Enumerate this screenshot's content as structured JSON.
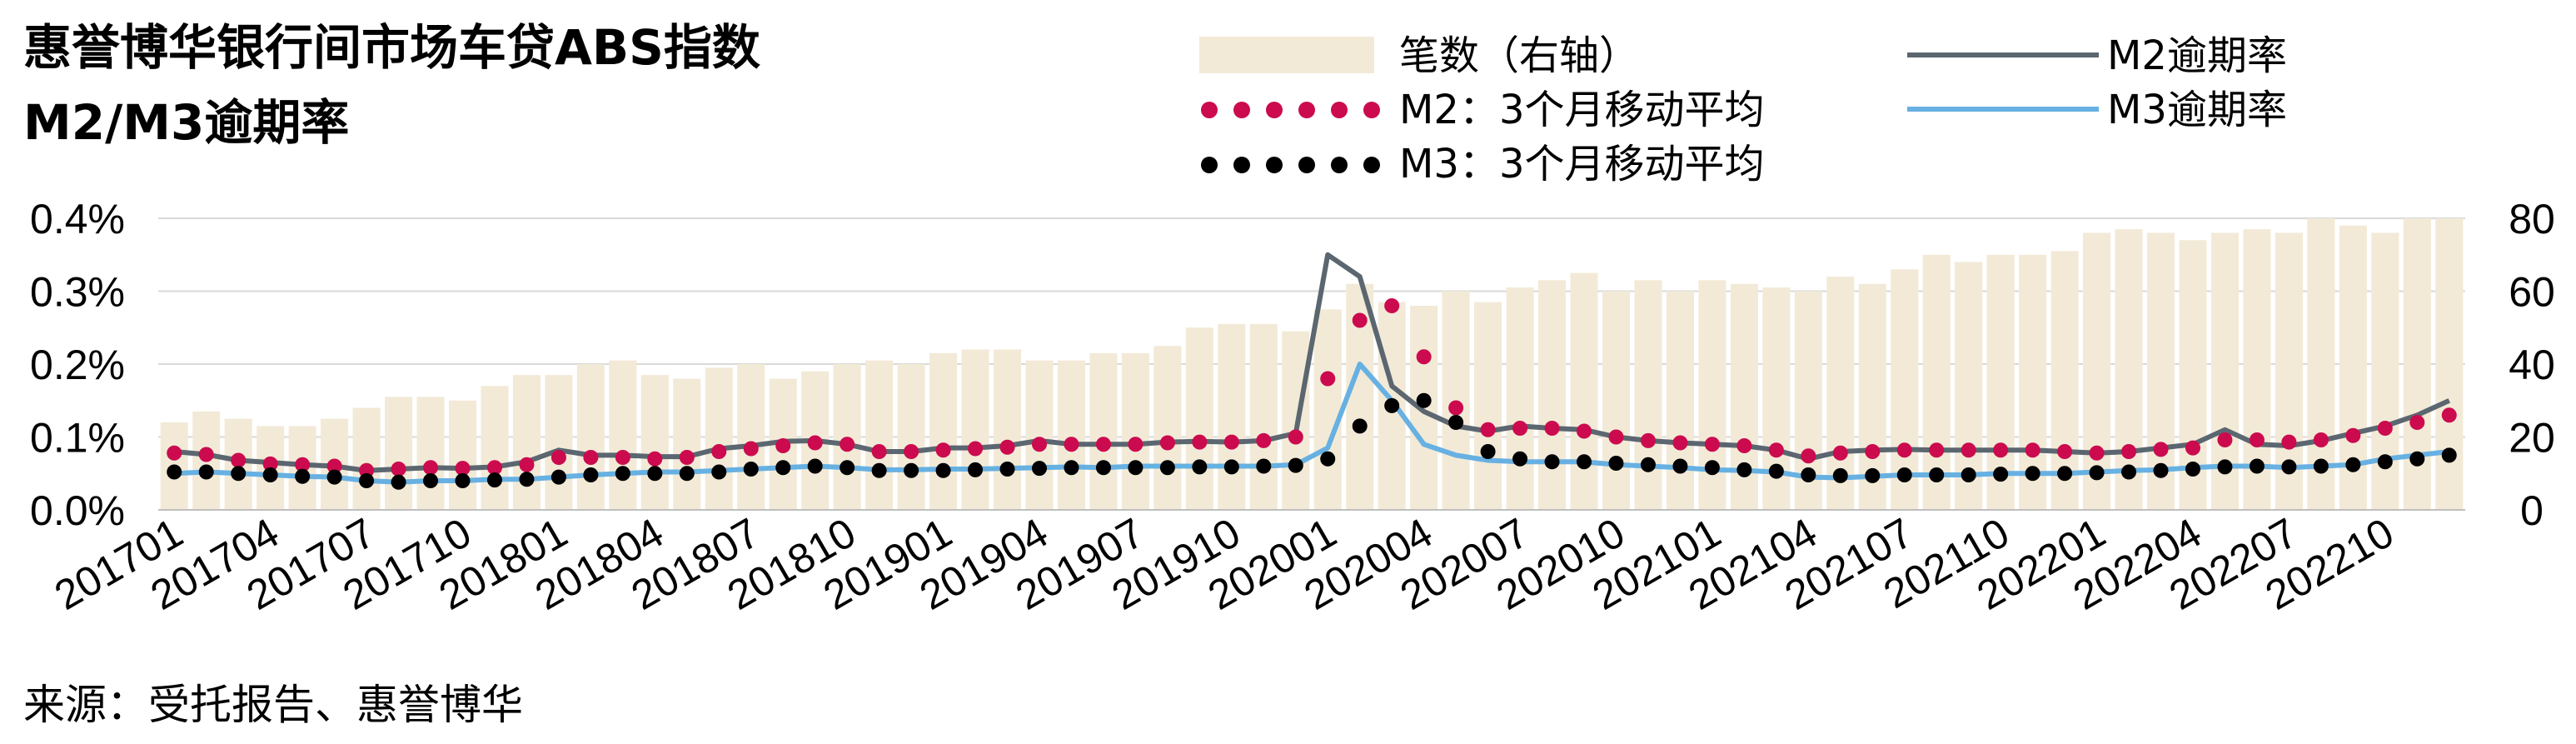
{
  "title": {
    "line1": "惠誉博华银行间市场车贷ABS指数",
    "line2": "M2/M3逾期率"
  },
  "source": "来源：受托报告、惠誉博华",
  "colors": {
    "bars": "#f2ead7",
    "m2_line": "#5b6670",
    "m3_line": "#67b0e2",
    "m2_avg_dots": "#cc0a4e",
    "m3_avg_dots": "#000000",
    "grid": "#d9d9d9"
  },
  "chart_data": {
    "type": "bar+line",
    "months": [
      "201701",
      "201702",
      "201703",
      "201704",
      "201705",
      "201706",
      "201707",
      "201708",
      "201709",
      "201710",
      "201711",
      "201712",
      "201801",
      "201802",
      "201803",
      "201804",
      "201805",
      "201806",
      "201807",
      "201808",
      "201809",
      "201810",
      "201811",
      "201812",
      "201901",
      "201902",
      "201903",
      "201904",
      "201905",
      "201906",
      "201907",
      "201908",
      "201909",
      "201910",
      "201911",
      "201912",
      "202001",
      "202002",
      "202003",
      "202004",
      "202005",
      "202006",
      "202007",
      "202008",
      "202009",
      "202010",
      "202011",
      "202012",
      "202101",
      "202102",
      "202103",
      "202104",
      "202105",
      "202106",
      "202107",
      "202108",
      "202109",
      "202110",
      "202111",
      "202112",
      "202201",
      "202202",
      "202203",
      "202204",
      "202205",
      "202206",
      "202207",
      "202208",
      "202209",
      "202210",
      "202211",
      "202212"
    ],
    "x_tick_labels": [
      "201701",
      "201704",
      "201707",
      "201710",
      "201801",
      "201804",
      "201807",
      "201810",
      "201901",
      "201904",
      "201907",
      "201910",
      "202001",
      "202004",
      "202007",
      "202010",
      "202101",
      "202104",
      "202107",
      "202110",
      "202201",
      "202204",
      "202207",
      "202210"
    ],
    "left_axis": {
      "ticks": [
        "0.0%",
        "0.1%",
        "0.2%",
        "0.3%",
        "0.4%"
      ],
      "range": [
        0,
        0.4
      ],
      "unit": "%"
    },
    "right_axis": {
      "ticks": [
        "0",
        "20",
        "40",
        "60",
        "80"
      ],
      "range": [
        0,
        80
      ]
    },
    "grid": true,
    "legend_position": "top",
    "series": [
      {
        "name": "笔数（右轴）",
        "kind": "bar",
        "axis": "right",
        "values": [
          24,
          27,
          25,
          23,
          23,
          25,
          28,
          31,
          31,
          30,
          34,
          37,
          37,
          40,
          41,
          37,
          36,
          39,
          40,
          36,
          38,
          40,
          41,
          40,
          43,
          44,
          44,
          41,
          41,
          43,
          43,
          45,
          50,
          51,
          51,
          49,
          55,
          62,
          57,
          56,
          60,
          57,
          61,
          63,
          65,
          60,
          63,
          60,
          63,
          62,
          61,
          60,
          64,
          62,
          66,
          70,
          68,
          70,
          70,
          71,
          76,
          77,
          76,
          74,
          76,
          77,
          76,
          80,
          78,
          76,
          80,
          80
        ]
      },
      {
        "name": "M2逾期率",
        "kind": "line",
        "axis": "left",
        "values": [
          0.08,
          0.076,
          0.068,
          0.065,
          0.062,
          0.06,
          0.054,
          0.056,
          0.058,
          0.057,
          0.059,
          0.066,
          0.082,
          0.075,
          0.075,
          0.073,
          0.073,
          0.084,
          0.088,
          0.094,
          0.095,
          0.09,
          0.08,
          0.08,
          0.085,
          0.085,
          0.088,
          0.095,
          0.09,
          0.09,
          0.09,
          0.093,
          0.094,
          0.093,
          0.095,
          0.105,
          0.35,
          0.32,
          0.17,
          0.135,
          0.115,
          0.108,
          0.115,
          0.112,
          0.11,
          0.1,
          0.095,
          0.092,
          0.09,
          0.088,
          0.082,
          0.07,
          0.08,
          0.082,
          0.083,
          0.082,
          0.082,
          0.082,
          0.082,
          0.08,
          0.078,
          0.08,
          0.085,
          0.09,
          0.11,
          0.09,
          0.088,
          0.095,
          0.105,
          0.115,
          0.13,
          0.15
        ]
      },
      {
        "name": "M3逾期率",
        "kind": "line",
        "axis": "left",
        "values": [
          0.05,
          0.052,
          0.05,
          0.048,
          0.046,
          0.045,
          0.04,
          0.038,
          0.04,
          0.04,
          0.042,
          0.042,
          0.045,
          0.048,
          0.05,
          0.052,
          0.052,
          0.054,
          0.056,
          0.058,
          0.06,
          0.058,
          0.055,
          0.055,
          0.056,
          0.056,
          0.057,
          0.058,
          0.059,
          0.058,
          0.06,
          0.06,
          0.06,
          0.06,
          0.06,
          0.062,
          0.085,
          0.2,
          0.15,
          0.09,
          0.075,
          0.068,
          0.066,
          0.066,
          0.066,
          0.062,
          0.06,
          0.058,
          0.055,
          0.054,
          0.052,
          0.045,
          0.044,
          0.046,
          0.048,
          0.048,
          0.048,
          0.05,
          0.05,
          0.05,
          0.052,
          0.054,
          0.055,
          0.058,
          0.06,
          0.06,
          0.058,
          0.06,
          0.062,
          0.07,
          0.075,
          0.08
        ]
      },
      {
        "name": "M2：3个月移动平均",
        "kind": "dots",
        "axis": "left",
        "values": [
          0.078,
          0.076,
          0.068,
          0.063,
          0.062,
          0.06,
          0.054,
          0.056,
          0.058,
          0.057,
          0.058,
          0.062,
          0.072,
          0.072,
          0.072,
          0.07,
          0.072,
          0.08,
          0.084,
          0.088,
          0.092,
          0.09,
          0.08,
          0.08,
          0.082,
          0.084,
          0.086,
          0.09,
          0.09,
          0.09,
          0.09,
          0.092,
          0.093,
          0.093,
          0.095,
          0.1,
          0.18,
          0.26,
          0.28,
          0.21,
          0.14,
          0.11,
          0.112,
          0.112,
          0.108,
          0.1,
          0.095,
          0.092,
          0.09,
          0.088,
          0.082,
          0.074,
          0.078,
          0.08,
          0.082,
          0.082,
          0.082,
          0.082,
          0.082,
          0.08,
          0.078,
          0.08,
          0.083,
          0.085,
          0.096,
          0.096,
          0.093,
          0.096,
          0.102,
          0.112,
          0.12,
          0.13
        ]
      },
      {
        "name": "M3：3个月移动平均",
        "kind": "dots",
        "axis": "left",
        "values": [
          0.052,
          0.052,
          0.05,
          0.048,
          0.046,
          0.045,
          0.04,
          0.038,
          0.04,
          0.04,
          0.041,
          0.042,
          0.045,
          0.048,
          0.05,
          0.05,
          0.05,
          0.052,
          0.056,
          0.058,
          0.06,
          0.058,
          0.054,
          0.054,
          0.054,
          0.055,
          0.056,
          0.057,
          0.058,
          0.058,
          0.058,
          0.058,
          0.059,
          0.059,
          0.06,
          0.061,
          0.07,
          0.115,
          0.143,
          0.15,
          0.12,
          0.08,
          0.07,
          0.066,
          0.066,
          0.064,
          0.062,
          0.06,
          0.058,
          0.055,
          0.053,
          0.048,
          0.047,
          0.047,
          0.048,
          0.048,
          0.048,
          0.049,
          0.05,
          0.05,
          0.051,
          0.052,
          0.054,
          0.056,
          0.059,
          0.06,
          0.059,
          0.06,
          0.062,
          0.066,
          0.07,
          0.075
        ]
      }
    ]
  }
}
